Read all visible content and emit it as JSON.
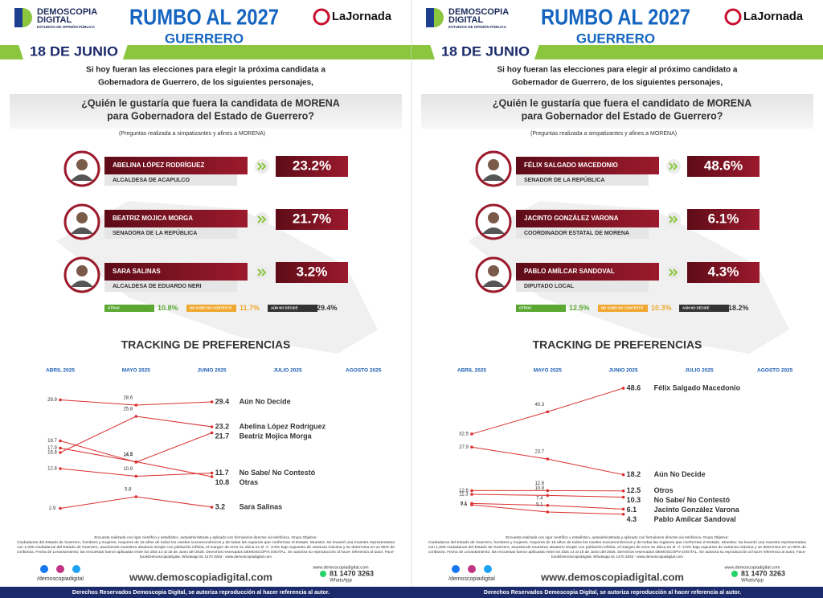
{
  "panels": [
    {
      "header": {
        "brand": "DEMOSCOPIA",
        "brand2": "DIGITAL",
        "brand_sub": "ESTUDIOS DE OPINIÓN PÚBLICA",
        "title": "RUMBO AL 2027",
        "state": "GUERRERO",
        "partner": "LaJornada",
        "date": "18 DE JUNIO"
      },
      "intro": [
        "Si hoy fueran las elecciones para elegir la próxima candidata a",
        "Gobernadora de Guerrero, de los siguientes personajes,"
      ],
      "question": [
        "¿Quién le gustaría que fuera la candidata de MORENA",
        "para Gobernadora del Estado de Guerrero?"
      ],
      "note": "(Preguntas realizada a simpatizantes y afines a MORENA)",
      "candidates": [
        {
          "name": "ABELINA LÓPEZ RODRÍGUEZ",
          "role": "ALCALDESA DE ACAPULCO",
          "pct": "23.2%"
        },
        {
          "name": "BEATRIZ MOJICA MORGA",
          "role": "SENADORA DE LA REPÚBLICA",
          "pct": "21.7%"
        },
        {
          "name": "SARA SALINAS",
          "role": "ALCALDESA DE EDUARDO NERI",
          "pct": "3.2%"
        }
      ],
      "others": [
        {
          "label": "OTRAS",
          "pct": "10.8%"
        },
        {
          "label": "NO SABE/ NO CONTESTÓ",
          "pct": "11.7%"
        },
        {
          "label": "AÚN NO DECIDE",
          "pct": "29.4%"
        }
      ],
      "tracking": {
        "type": "line",
        "title": "TRACKING DE PREFERENCIAS",
        "categories": [
          "ABRIL 2025",
          "MAYO 2025",
          "JUNIO 2025",
          "JULIO 2025",
          "AGOSTO 2025"
        ],
        "ylim": [
          0,
          32
        ],
        "series": [
          {
            "name": "Aún No Decide",
            "color": "#d9302f",
            "values": [
              29.9,
              28.6,
              29.4,
              null,
              null
            ]
          },
          {
            "name": "Abelina López Rodríguez",
            "color": "#d9302f",
            "values": [
              16.8,
              25.8,
              23.2,
              null,
              null
            ]
          },
          {
            "name": "Beatriz Mojica Morga",
            "color": "#d9302f",
            "values": [
              19.7,
              14.4,
              21.7,
              null,
              null
            ]
          },
          {
            "name": "No Sabe/ No Contestó",
            "color": "#d9302f",
            "values": [
              12.8,
              10.9,
              11.7,
              null,
              null
            ]
          },
          {
            "name": "Otras",
            "color": "#d9302f",
            "values": [
              17.9,
              14.5,
              10.8,
              null,
              null
            ]
          },
          {
            "name": "Sara Salinas",
            "color": "#d9302f",
            "values": [
              2.9,
              5.8,
              3.2,
              null,
              null
            ]
          }
        ]
      },
      "footer": {
        "fine": [
          "Encuesta realizada con rigor científico y estadístico, autoadministrada y aplicado con formularios directos vía telefónica. Grupo Objetivo:",
          "Ciudadanos del Estado de Guerrero, hombres y mujeres, mayores de 18 años de todos los niveles socioeconómicos y de todas las regiones que conforman el Estado. Muestra: Se levantó una muestra representativa",
          "con 1,000 ciudadanos del Estado de Guerrero, asumiendo muestreo aleatorio simple con población infinita, el margen de error se ubica en el +/- 3.9% bajo supuesto de varianza máxima y se determina en un 95% de",
          "confianza. Fecha de Levantamiento: las encuestas fueron aplicadas entre los días 14 al 18 de Junio del 2025. Derechos reservados DEMOSCOPIA DIGITAL. Se autoriza su reproducción al hacer referencia al autor, Face-",
          "book/DemoscopiaDigital, Whatsapp 81 1470 3263 - www.demoscopiadigital.com"
        ],
        "social": "/demoscopiadigital",
        "website": "www.demoscopiadigital.com",
        "site_small": "www.demoscopiadigital.com",
        "phone": "81 1470 3263",
        "whatsapp": "WhatsApp",
        "rights": "Derechos Reservados Demoscopia Digital, se autoriza reproducción al hacer referencia al autor."
      }
    },
    {
      "header": {
        "brand": "DEMOSCOPIA",
        "brand2": "DIGITAL",
        "brand_sub": "ESTUDIOS DE OPINIÓN PÚBLICA",
        "title": "RUMBO AL 2027",
        "state": "GUERRERO",
        "partner": "LaJornada",
        "date": "18 DE JUNIO"
      },
      "intro": [
        "Si hoy fueran las elecciones para elegir al próximo candidato a",
        "Gobernador de Guerrero, de los siguientes personajes,"
      ],
      "question": [
        "¿Quién le gustaría que fuera el candidato de MORENA",
        "para Gobernador del Estado de Guerrero?"
      ],
      "note": "(Preguntas realizada a simpatizantes y afines a MORENA)",
      "candidates": [
        {
          "name": "FÉLIX SALGADO MACEDONIO",
          "role": "SENADOR DE LA REPÚBLICA",
          "pct": "48.6%"
        },
        {
          "name": "JACINTO GONZÁLEZ VARONA",
          "role": "COORDINADOR ESTATAL DE MORENA",
          "pct": "6.1%"
        },
        {
          "name": "PABLO AMÍLCAR SANDOVAL",
          "role": "DIPUTADO LOCAL",
          "pct": "4.3%"
        }
      ],
      "others": [
        {
          "label": "OTROS",
          "pct": "12.5%"
        },
        {
          "label": "NO SABE/ NO CONTESTÓ",
          "pct": "10.3%"
        },
        {
          "label": "AÚN NO DECIDE",
          "pct": "18.2%"
        }
      ],
      "tracking": {
        "type": "line",
        "title": "TRACKING DE PREFERENCIAS",
        "categories": [
          "ABRIL 2025",
          "MAYO 2025",
          "JUNIO 2025",
          "JULIO 2025",
          "AGOSTO 2025"
        ],
        "ylim": [
          0,
          50
        ],
        "series": [
          {
            "name": "Félix Salgado Macedonio",
            "color": "#d9302f",
            "values": [
              32.5,
              40.3,
              48.6,
              null,
              null
            ]
          },
          {
            "name": "Aún No Decide",
            "color": "#d9302f",
            "values": [
              27.9,
              23.7,
              18.2,
              null,
              null
            ]
          },
          {
            "name": "Otros",
            "color": "#d9302f",
            "values": [
              12.6,
              12.6,
              12.5,
              null,
              null
            ]
          },
          {
            "name": "No Sabe/ No Contestó",
            "color": "#d9302f",
            "values": [
              11.3,
              10.9,
              10.3,
              null,
              null
            ]
          },
          {
            "name": "Jacinto González Varona",
            "color": "#d9302f",
            "values": [
              8.1,
              7.4,
              6.1,
              null,
              null
            ]
          },
          {
            "name": "Pablo Amílcar Sandoval",
            "color": "#d9302f",
            "values": [
              7.6,
              5.1,
              4.3,
              null,
              null
            ]
          }
        ]
      },
      "footer": {
        "fine": [
          "Encuesta realizada con rigor científico y estadístico, autoadministrada y aplicado con formularios directos vía telefónica. Grupo Objetivo:",
          "Ciudadanos del Estado de Guerrero, hombres y mujeres, mayores de 18 años de todos los niveles socioeconómicos y de todas las regiones que conforman el Estado. Muestra: Se levantó una muestra representativa",
          "con 1,000 ciudadanos del Estado de Guerrero, asumiendo muestreo aleatorio simple con población infinita, el margen de error se ubica en el +/- 3.9% bajo supuesto de varianza máxima y se determina en un 95% de",
          "confianza. Fecha de Levantamiento: las encuestas fueron aplicadas entre los días 14 al 18 de Junio del 2025. Derechos reservados DEMOSCOPIA DIGITAL. Se autoriza su reproducción al hacer referencia al autor, Face-",
          "book/DemoscopiaDigital, Whatsapp 81 1470 3263 - www.demoscopiadigital.com"
        ],
        "social": "/demoscopiadigital",
        "website": "www.demoscopiadigital.com",
        "site_small": "www.demoscopiadigital.com",
        "phone": "81 1470 3263",
        "whatsapp": "WhatsApp",
        "rights": "Derechos Reservados Demoscopia Digital, se autoriza reproducción al hacer referencia al autor."
      }
    }
  ]
}
